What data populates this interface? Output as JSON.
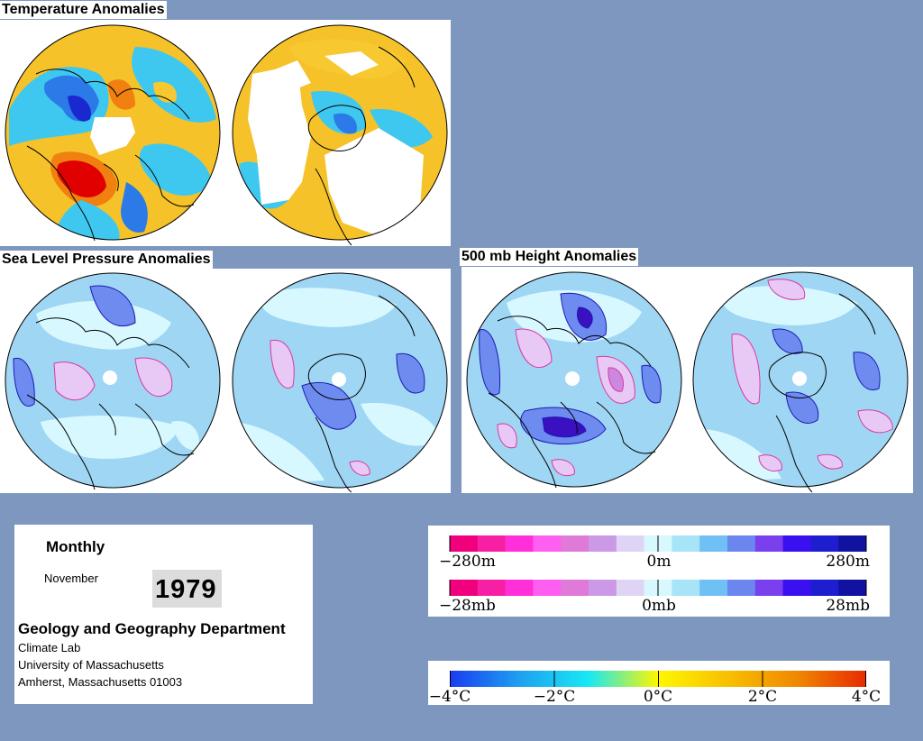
{
  "titles": {
    "temperature": "Temperature Anomalies",
    "slp": "Sea Level Pressure Anomalies",
    "height500": "500 mb Height Anomalies"
  },
  "info": {
    "period": "Monthly",
    "month": "November",
    "year": "1979",
    "department": "Geology and Geography Department",
    "line1": "Climate Lab",
    "line2": "University of Massachusetts",
    "line3": "Amherst, Massachusetts 01003"
  },
  "legend_height": {
    "min": "−280m",
    "mid": "0m",
    "max": "280m",
    "colors": [
      "#f0007c",
      "#f720a4",
      "#ff2fd9",
      "#ff5ff0",
      "#e07ad9",
      "#cc99e6",
      "#e0d4f5",
      "#d8f8ff",
      "#a8e4f8",
      "#6fc0f4",
      "#6c86f0",
      "#7a40ee",
      "#3a10f0",
      "#1e1ed0",
      "#1212a0"
    ]
  },
  "legend_pressure": {
    "min": "−28mb",
    "mid": "0mb",
    "max": "28mb",
    "colors": [
      "#f0007c",
      "#f720a4",
      "#ff2fd9",
      "#ff5ff0",
      "#e07ad9",
      "#cc99e6",
      "#e0d4f5",
      "#d8f8ff",
      "#a8e4f8",
      "#6fc0f4",
      "#6c86f0",
      "#7a40ee",
      "#3a10f0",
      "#1e1ed0",
      "#1212a0"
    ]
  },
  "legend_temperature": {
    "labels": [
      "−4°C",
      "−2°C",
      "0°C",
      "2°C",
      "4°C"
    ],
    "gradient": [
      "#1a3cf0",
      "#1ea0f0",
      "#18e8f4",
      "#fff600",
      "#f8c000",
      "#f08800",
      "#e82a00"
    ]
  },
  "palette": {
    "background": "#7d97bf",
    "land_lines": "#000000",
    "pos_strong": "#e00000",
    "pos": "#f08010",
    "pos_weak": "#f8c830",
    "neutral": "#f6f21a",
    "neg_weak": "#3ec8f0",
    "neg": "#2c7ae8",
    "neg_strong": "#1a28d0",
    "slp_base": "#d8f8ff",
    "slp_blue": "#9fd6f4",
    "slp_mid": "#6e8bf0",
    "slp_pink": "#e8c8f4",
    "slp_contour": "#d83aa0"
  }
}
